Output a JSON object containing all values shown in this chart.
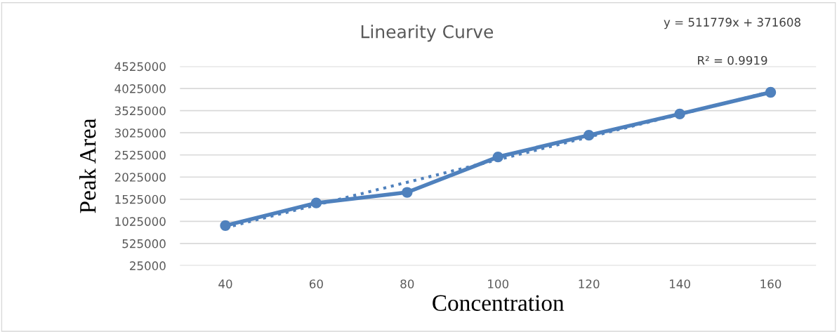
{
  "chart_data": {
    "type": "line",
    "title": "Linearity Curve",
    "xlabel": "Concentration",
    "ylabel": "Peak Area",
    "categories": [
      "40",
      "60",
      "80",
      "100",
      "120",
      "140",
      "160"
    ],
    "series": [
      {
        "color": "#4f81bd",
        "values": [
          930000,
          1440000,
          1680000,
          2480000,
          2970000,
          3450000,
          3940000
        ],
        "marker": "circle",
        "line_style": "solid"
      },
      {
        "color": "#4f81bd",
        "values": [
          883000,
          1395000,
          1907000,
          2419000,
          2931000,
          3442000,
          3954000
        ],
        "marker": "none",
        "line_style": "dotted"
      }
    ],
    "ylim": [
      25000,
      4525000
    ],
    "yticks": [
      25000,
      525000,
      1025000,
      1525000,
      2025000,
      2525000,
      3025000,
      3525000,
      4025000,
      4525000
    ],
    "grid": "y",
    "legend": false,
    "annotations": [
      "y = 511779x + 371608",
      "R² = 0.9919"
    ]
  }
}
